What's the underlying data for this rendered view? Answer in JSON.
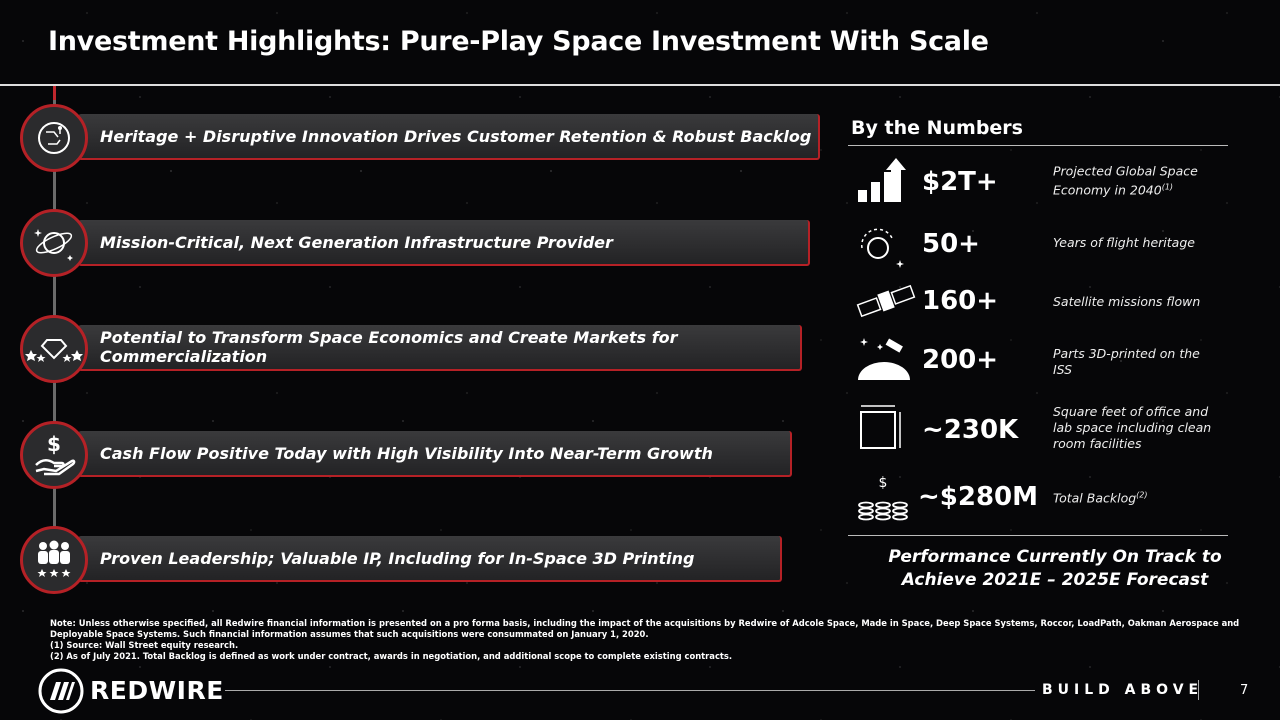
{
  "header": {
    "title": "Investment Highlights: Pure-Play Space Investment With Scale"
  },
  "highlights": [
    "Heritage + Disruptive Innovation Drives Customer Retention & Robust Backlog",
    "Mission-Critical, Next Generation Infrastructure Provider",
    "Potential to Transform Space Economics and Create Markets for Commercialization",
    "Cash Flow Positive Today with High Visibility Into Near-Term Growth",
    "Proven Leadership; Valuable IP, Including for In-Space 3D Printing"
  ],
  "by_the_numbers": {
    "heading": "By the Numbers",
    "items": [
      {
        "value": "$2T+",
        "label": "Projected Global Space Economy in 2040",
        "footnote": "(1)"
      },
      {
        "value": "50+",
        "label": "Years of flight heritage"
      },
      {
        "value": "160+",
        "label": "Satellite missions flown"
      },
      {
        "value": "200+",
        "label": "Parts 3D-printed on the ISS"
      },
      {
        "value": "~230K",
        "label": "Square feet of office and lab space including clean room facilities"
      },
      {
        "value": "~$280M",
        "label": "Total Backlog",
        "footnote": "(2)"
      }
    ],
    "conclusion": "Performance Currently On Track to Achieve 2021E – 2025E Forecast"
  },
  "notes": [
    "Note: Unless otherwise specified, all Redwire financial information is presented on a pro forma basis, including the impact of the acquisitions by Redwire of Adcole Space, Made in Space, Deep Space Systems, Roccor, LoadPath, Oakman Aerospace and Deployable Space Systems. Such financial information assumes that such acquisitions were consummated on January 1, 2020.",
    "(1) Source: Wall Street equity research.",
    "(2) As of July 2021. Total Backlog is defined as work under contract, awards in negotiation, and additional scope to complete existing contracts."
  ],
  "footer": {
    "brand": "REDWIRE",
    "tagline": "BUILD ABOVE",
    "page_number": "7"
  }
}
